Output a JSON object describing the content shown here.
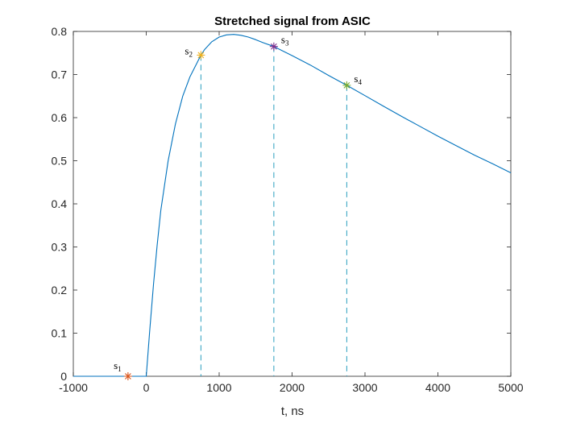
{
  "chart_data": {
    "type": "line",
    "title": "Stretched signal from ASIC",
    "xlabel": "t, ns",
    "ylabel": "",
    "xlim": [
      -1000,
      5000
    ],
    "ylim": [
      0,
      0.8
    ],
    "xticks": [
      -1000,
      0,
      1000,
      2000,
      3000,
      4000,
      5000
    ],
    "yticks": [
      0,
      0.1,
      0.2,
      0.3,
      0.4,
      0.5,
      0.6,
      0.7,
      0.8
    ],
    "xtick_labels": [
      "-1000",
      "0",
      "1000",
      "2000",
      "3000",
      "4000",
      "5000"
    ],
    "ytick_labels": [
      "0",
      "0.1",
      "0.2",
      "0.3",
      "0.4",
      "0.5",
      "0.6",
      "0.7",
      "0.8"
    ],
    "grid": false,
    "series": [
      {
        "color": "#0072BD",
        "x": [
          -1000,
          -250,
          0,
          50,
          100,
          150,
          200,
          300,
          400,
          500,
          600,
          700,
          750,
          800,
          900,
          1000,
          1100,
          1200,
          1300,
          1400,
          1500,
          1600,
          1750,
          2000,
          2250,
          2500,
          2750,
          3000,
          3250,
          3500,
          3750,
          4000,
          4250,
          4500,
          4750,
          5000
        ],
        "y": [
          0,
          0,
          0,
          0.11,
          0.215,
          0.305,
          0.385,
          0.5,
          0.585,
          0.65,
          0.695,
          0.728,
          0.745,
          0.758,
          0.776,
          0.787,
          0.792,
          0.793,
          0.791,
          0.787,
          0.781,
          0.774,
          0.765,
          0.744,
          0.722,
          0.698,
          0.675,
          0.651,
          0.627,
          0.603,
          0.58,
          0.557,
          0.535,
          0.513,
          0.493,
          0.472
        ]
      }
    ],
    "markers": [
      {
        "label": "s",
        "sub": "1",
        "x": -250,
        "y": 0,
        "color": "#D95319",
        "label_pos": "above-left"
      },
      {
        "label": "s",
        "sub": "2",
        "x": 750,
        "y": 0.745,
        "color": "#EDB120",
        "label_pos": "left"
      },
      {
        "label": "s",
        "sub": "3",
        "x": 1750,
        "y": 0.765,
        "color": "#7E2F8E",
        "label_pos": "right"
      },
      {
        "label": "s",
        "sub": "4",
        "x": 2750,
        "y": 0.675,
        "color": "#77AC30",
        "label_pos": "right"
      }
    ],
    "dashed_lines": [
      {
        "x": 750,
        "y_top": 0.745,
        "color": "#2A9FBF"
      },
      {
        "x": 1750,
        "y_top": 0.765,
        "color": "#2A9FBF"
      },
      {
        "x": 2750,
        "y_top": 0.675,
        "color": "#2A9FBF"
      }
    ],
    "axis_color": "#262626"
  }
}
